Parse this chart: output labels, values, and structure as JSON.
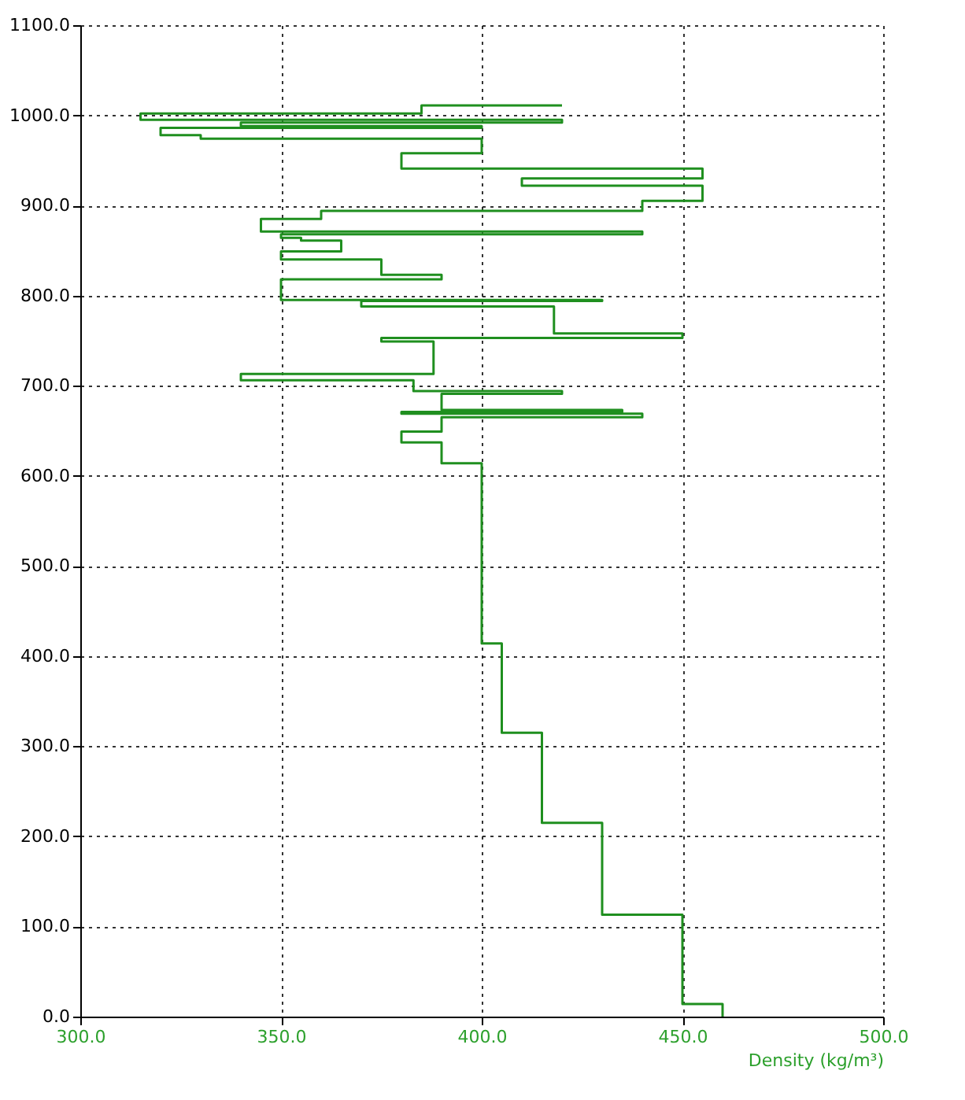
{
  "chart_data": {
    "type": "line",
    "xlabel": "Density (kg/m³)",
    "xlim": [
      300,
      500
    ],
    "ylim": [
      0,
      1100
    ],
    "xticks": [
      {
        "value": 300,
        "label": "300.0"
      },
      {
        "value": 350,
        "label": "350.0"
      },
      {
        "value": 400,
        "label": "400.0"
      },
      {
        "value": 450,
        "label": "450.0"
      },
      {
        "value": 500,
        "label": "500.0"
      }
    ],
    "yticks": [
      {
        "value": 0,
        "label": "0.0"
      },
      {
        "value": 100,
        "label": "100.0"
      },
      {
        "value": 200,
        "label": "200.0"
      },
      {
        "value": 300,
        "label": "300.0"
      },
      {
        "value": 400,
        "label": "400.0"
      },
      {
        "value": 500,
        "label": "500.0"
      },
      {
        "value": 600,
        "label": "600.0"
      },
      {
        "value": 700,
        "label": "700.0"
      },
      {
        "value": 800,
        "label": "800.0"
      },
      {
        "value": 900,
        "label": "900.0"
      },
      {
        "value": 1000,
        "label": "1000.0"
      },
      {
        "value": 1100,
        "label": "1100.0"
      }
    ],
    "grid": true,
    "series": [
      {
        "color": "#1f8f1f",
        "x": [
          460,
          460,
          450,
          450,
          430,
          430,
          415,
          415,
          405,
          405,
          400,
          400,
          390,
          390,
          380,
          380,
          390,
          390,
          440,
          440,
          380,
          380,
          435,
          435,
          390,
          390,
          420,
          420,
          383,
          383,
          340,
          340,
          388,
          388,
          375,
          375,
          450,
          450,
          418,
          418,
          370,
          370,
          430,
          430,
          350,
          350,
          390,
          390,
          375,
          375,
          350,
          350,
          365,
          365,
          355,
          355,
          350,
          350,
          440,
          440,
          345,
          345,
          360,
          360,
          440,
          440,
          455,
          455,
          410,
          410,
          455,
          455,
          380,
          380,
          400,
          400,
          330,
          330,
          320,
          320,
          400,
          400,
          340,
          340,
          420,
          420,
          315,
          315,
          385,
          385,
          420
        ],
        "values": [
          0,
          14,
          14,
          113,
          113,
          215,
          215,
          315,
          315,
          414,
          414,
          614,
          614,
          637,
          637,
          649,
          649,
          665,
          665,
          669,
          669,
          671,
          671,
          673,
          673,
          691,
          691,
          694,
          694,
          706,
          706,
          713,
          713,
          749,
          749,
          753,
          753,
          758,
          758,
          788,
          788,
          794,
          794,
          795,
          795,
          818,
          818,
          823,
          823,
          840,
          840,
          849,
          849,
          861,
          861,
          864,
          864,
          868,
          868,
          871,
          871,
          885,
          885,
          894,
          894,
          905,
          905,
          922,
          922,
          930,
          930,
          941,
          941,
          958,
          958,
          974,
          974,
          978,
          978,
          986,
          986,
          988,
          988,
          992,
          992,
          995,
          995,
          1002,
          1002,
          1011,
          1011
        ]
      }
    ]
  }
}
